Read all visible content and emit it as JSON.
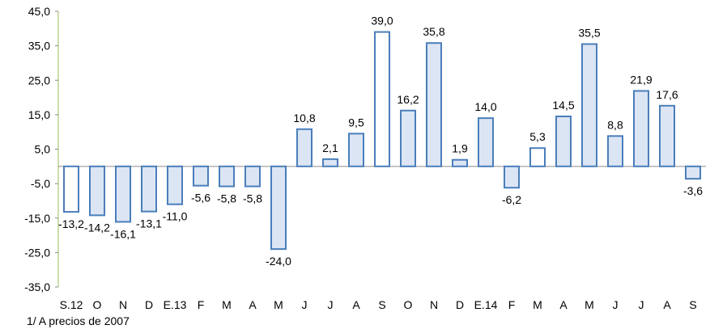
{
  "chart_data": {
    "type": "bar",
    "categories": [
      "S.12",
      "O",
      "N",
      "D",
      "E.13",
      "F",
      "M",
      "A",
      "M",
      "J",
      "J",
      "A",
      "S",
      "O",
      "N",
      "D",
      "E.14",
      "F",
      "M",
      "A",
      "M",
      "J",
      "J",
      "A",
      "S"
    ],
    "values": [
      -13.2,
      -14.2,
      -16.1,
      -13.1,
      -11.0,
      -5.6,
      -5.8,
      -5.8,
      -24.0,
      10.8,
      2.1,
      9.5,
      39.0,
      16.2,
      35.8,
      1.9,
      14.0,
      -6.2,
      5.3,
      14.5,
      35.5,
      8.8,
      21.9,
      17.6,
      -3.6
    ],
    "value_labels": [
      "-13,2",
      "-14,2",
      "-16,1",
      "-13,1",
      "-11,0",
      "-5,6",
      "-5,8",
      "-5,8",
      "-24,0",
      "10,8",
      "2,1",
      "9,5",
      "39,0",
      "16,2",
      "35,8",
      "1,9",
      "14,0",
      "-6,2",
      "5,3",
      "14,5",
      "35,5",
      "8,8",
      "21,9",
      "17,6",
      "-3,6"
    ],
    "white_bars": [
      0,
      12,
      18
    ],
    "yticks": [
      45,
      35,
      25,
      15,
      5,
      -5,
      -15,
      -25,
      -35
    ],
    "ytick_labels": [
      "45,0",
      "35,0",
      "25,0",
      "15,0",
      "5,0",
      "-5,0",
      "-15,0",
      "-25,0",
      "-35,0"
    ],
    "ylim": [
      -35,
      45
    ],
    "grid": false,
    "legend": "none",
    "colors": {
      "bar_fill": "#dbe5f4",
      "bar_fill_white": "#ffffff",
      "bar_stroke": "#4a7ebb",
      "axis": "#8a8a8a",
      "yaxis": "#9bbb59"
    }
  },
  "footnote": "1/ A precios de 2007"
}
